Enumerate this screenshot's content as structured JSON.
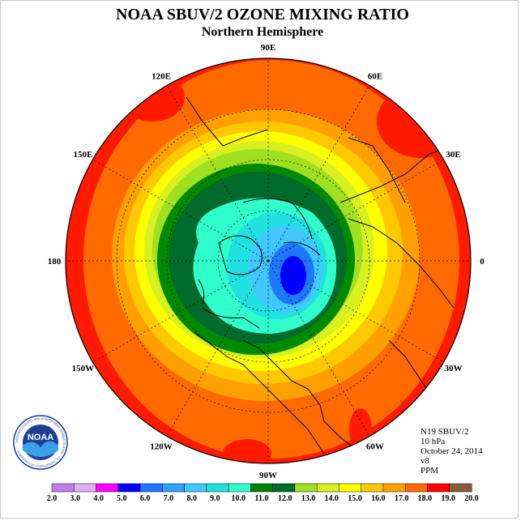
{
  "title": "NOAA SBUV/2 OZONE MIXING RATIO",
  "subtitle": "Northern Hemisphere",
  "longitude_labels": [
    "90E",
    "60E",
    "30E",
    "0",
    "30W",
    "60W",
    "90W",
    "120W",
    "150W",
    "180",
    "150E",
    "120E"
  ],
  "info": {
    "instrument": "N19 SBUV/2",
    "pressure": "10 hPa",
    "date": "October 24, 2014",
    "version": "v8",
    "units": "PPM"
  },
  "logo": {
    "text": "NOAA",
    "ring_text": "NATIONAL OCEANIC AND ATMOSPHERIC ADMINISTRATION · U.S. DEPARTMENT OF COMMERCE"
  },
  "colorbar": {
    "ticks": [
      "2.0",
      "3.0",
      "4.0",
      "5.0",
      "6.0",
      "7.0",
      "8.0",
      "9.0",
      "10.0",
      "11.0",
      "12.0",
      "13.0",
      "14.0",
      "15.0",
      "16.0",
      "17.0",
      "18.0",
      "19.0",
      "20.0"
    ],
    "colors": [
      "#c080e8",
      "#e0b0f0",
      "#ff00ff",
      "#0000ff",
      "#1e78ff",
      "#30a0ff",
      "#40c8ff",
      "#20e0e0",
      "#30ffcc",
      "#008000",
      "#006b2a",
      "#a0e020",
      "#d8f020",
      "#ffff00",
      "#ffc800",
      "#ffa000",
      "#ff6a00",
      "#ff0000",
      "#8b5a3c"
    ]
  },
  "map_colors": {
    "red": "#ff1a00",
    "orange_red": "#ff6a00",
    "orange": "#ffa000",
    "gold": "#ffc800",
    "yellow": "#ffff00",
    "yellow_green": "#d8f020",
    "lime": "#a0e020",
    "green": "#008a00",
    "dark_green": "#006b2a",
    "aqua": "#30ffcc",
    "cyan": "#20e0e0",
    "sky": "#40c8ff",
    "blue": "#1e78ff",
    "deep_blue": "#0000ff"
  }
}
